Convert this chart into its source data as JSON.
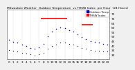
{
  "title": "Milwaukee Weather  Outdoor Temperature  vs THSW Index  per Hour  (24 Hours)",
  "bg_color": "#f0f0f0",
  "plot_bg": "#ffffff",
  "grid_color": "#bbbbbb",
  "hours": [
    0,
    1,
    2,
    3,
    4,
    5,
    6,
    7,
    8,
    9,
    10,
    11,
    12,
    13,
    14,
    15,
    16,
    17,
    18,
    19,
    20,
    21,
    22,
    23
  ],
  "temp_values": [
    46,
    44,
    43,
    41,
    39,
    37,
    36,
    38,
    42,
    50,
    55,
    58,
    60,
    59,
    57,
    55,
    52,
    49,
    47,
    45,
    44,
    43,
    42,
    41
  ],
  "thsw_segments": [
    {
      "x_start": 7.5,
      "x_end": 13.5,
      "y": 70
    },
    {
      "x_start": 17.0,
      "x_end": 19.5,
      "y": 63
    }
  ],
  "black_dots_y": [
    35,
    34,
    33,
    32,
    31,
    30,
    29,
    30,
    32,
    36,
    39,
    41,
    43,
    43,
    42,
    41,
    39,
    37,
    36,
    35,
    34,
    34,
    33,
    33
  ],
  "ylim_min": 25,
  "ylim_max": 80,
  "ytick_positions": [
    30,
    35,
    40,
    45,
    50,
    55,
    60,
    65,
    70,
    75
  ],
  "ytick_labels": [
    "30",
    "35",
    "40",
    "45",
    "50",
    "55",
    "60",
    "65",
    "70",
    "75"
  ],
  "xtick_positions": [
    0,
    1,
    2,
    3,
    4,
    5,
    6,
    7,
    8,
    9,
    10,
    11,
    12,
    13,
    14,
    15,
    16,
    17,
    18,
    19,
    20,
    21,
    22,
    23
  ],
  "grid_x_positions": [
    1,
    3,
    5,
    7,
    9,
    11,
    13,
    15,
    17,
    19,
    21,
    23
  ],
  "temp_color": "#0000cc",
  "thsw_color": "#ff0000",
  "black_color": "#000000",
  "legend_temp_label": "Outdoor Temp",
  "legend_thsw_label": "THSW Index",
  "title_fontsize": 3.2,
  "tick_fontsize": 3.0,
  "legend_fontsize": 2.8,
  "dot_size_temp": 1.2,
  "dot_size_black": 0.8,
  "thsw_linewidth": 1.2
}
